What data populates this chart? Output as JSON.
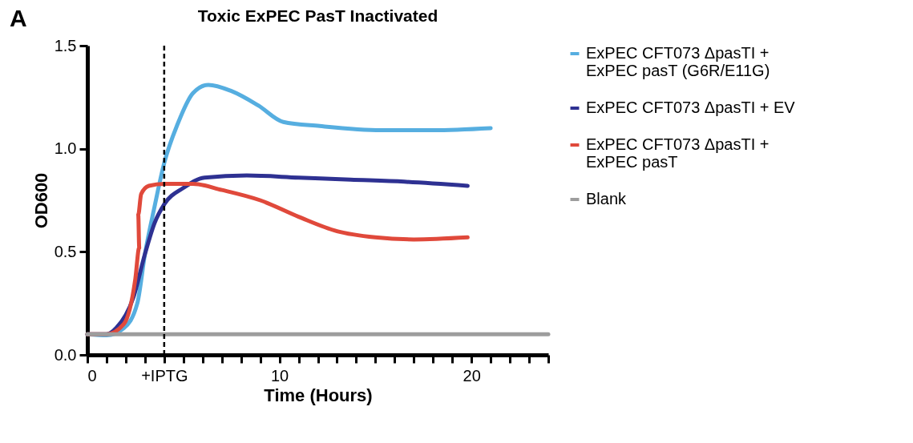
{
  "chart_data": {
    "type": "line",
    "title": "Toxic ExPEC PasT Inactivated",
    "xlabel": "Time (Hours)",
    "ylabel": "OD600",
    "annotations": [
      "A"
    ],
    "xlim": [
      0,
      24
    ],
    "ylim": [
      0,
      1.5
    ],
    "xticks": [
      0,
      {
        "value": 1,
        "label": null
      },
      {
        "value": 2,
        "label": null
      },
      {
        "value": 3,
        "label": null
      },
      {
        "value": 4,
        "label": "+IPTG"
      },
      {
        "value": 5,
        "label": null
      },
      {
        "value": 6,
        "label": null
      },
      {
        "value": 7,
        "label": null
      },
      {
        "value": 8,
        "label": null
      },
      {
        "value": 9,
        "label": null
      },
      10,
      {
        "value": 11,
        "label": null
      },
      {
        "value": 12,
        "label": null
      },
      {
        "value": 13,
        "label": null
      },
      {
        "value": 14,
        "label": null
      },
      {
        "value": 15,
        "label": null
      },
      {
        "value": 16,
        "label": null
      },
      {
        "value": 17,
        "label": null
      },
      {
        "value": 18,
        "label": null
      },
      {
        "value": 19,
        "label": null
      },
      20,
      {
        "value": 21,
        "label": null
      },
      {
        "value": 22,
        "label": null
      },
      {
        "value": 23,
        "label": null
      },
      {
        "value": 24,
        "label": null
      }
    ],
    "yticks": [
      {
        "value": 0,
        "label": "0.0"
      },
      {
        "value": 0.5,
        "label": "0.5"
      },
      {
        "value": 1,
        "label": "1.0"
      },
      {
        "value": 1.5,
        "label": "1.5"
      }
    ],
    "grid": false,
    "legend": "right",
    "marker": "none",
    "line_style": "solid",
    "ref_lines": [
      {
        "axis": "x",
        "value": 4,
        "color": "#000000",
        "line_style": "dashed"
      }
    ],
    "series": [
      {
        "name": "ExPEC CFT073 ΔpasTI + ExPEC pasT (G6R/E11G)",
        "color": "#56aee0",
        "x": [
          0,
          1,
          1.9,
          2.6,
          3,
          3.5,
          4,
          4.7,
          5.5,
          6.3,
          7.5,
          8.9,
          10.2,
          12.1,
          15.3,
          18,
          21
        ],
        "values": [
          0.1,
          0.095,
          0.13,
          0.25,
          0.49,
          0.72,
          0.93,
          1.12,
          1.27,
          1.31,
          1.28,
          1.21,
          1.13,
          1.11,
          1.09,
          1.09,
          1.1
        ]
      },
      {
        "name": "ExPEC CFT073 ΔpasTI + EV",
        "color": "#2e3192",
        "x": [
          0,
          1,
          1.5,
          2.4,
          3,
          3.5,
          4,
          5,
          6.1,
          8.3,
          11,
          13.7,
          16.5,
          19.8
        ],
        "values": [
          0.1,
          0.1,
          0.13,
          0.28,
          0.49,
          0.64,
          0.73,
          0.81,
          0.86,
          0.87,
          0.86,
          0.85,
          0.84,
          0.82
        ]
      },
      {
        "name": "ExPEC CFT073 ΔpasTI + ExPEC pasT",
        "color": "#e0493b",
        "x": [
          0,
          1,
          1.9,
          2.5,
          2.7,
          2.65,
          2.8,
          3.2,
          4,
          5.5,
          7,
          9,
          11,
          13,
          15,
          17,
          19.8
        ],
        "values": [
          0.1,
          0.1,
          0.15,
          0.37,
          0.52,
          0.68,
          0.78,
          0.82,
          0.83,
          0.83,
          0.8,
          0.75,
          0.67,
          0.6,
          0.57,
          0.56,
          0.57
        ]
      },
      {
        "name": "Blank",
        "color": "#9d9d9d",
        "x": [
          0,
          24
        ],
        "values": [
          0.1,
          0.1
        ]
      }
    ]
  }
}
